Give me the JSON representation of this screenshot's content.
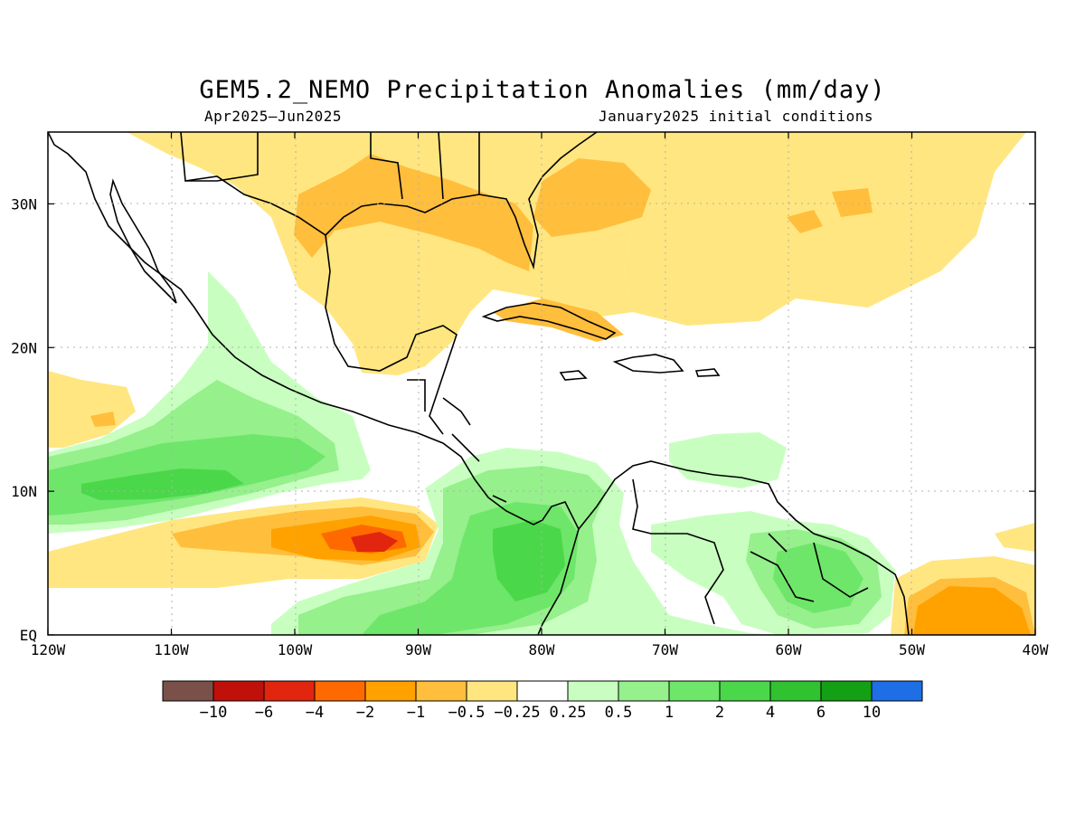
{
  "title": "GEM5.2_NEMO Precipitation Anomalies (mm/day)",
  "subtitle_left": "Apr2025–Jun2025",
  "subtitle_right": "January2025 initial conditions",
  "map": {
    "lon_range": [
      -120,
      -40
    ],
    "lat_range": [
      0,
      35
    ],
    "x_ticks": [
      "120W",
      "110W",
      "100W",
      "90W",
      "80W",
      "70W",
      "60W",
      "50W",
      "40W"
    ],
    "y_ticks": [
      "EQ",
      "10N",
      "20N",
      "30N"
    ],
    "grid": "dotted"
  },
  "colorbar": {
    "colors": [
      "#7a5148",
      "#c0100a",
      "#e2250e",
      "#ff6a00",
      "#ffa200",
      "#ffbe3c",
      "#ffe680",
      "#ffffff",
      "#c8ffc0",
      "#96f08c",
      "#6ee66a",
      "#4ad84a",
      "#30c230",
      "#14a014",
      "#1e6ee6"
    ],
    "labels": [
      "−10",
      "−6",
      "−4",
      "−2",
      "−1",
      "−0.5",
      "−0.25",
      "0.25",
      "0.5",
      "1",
      "2",
      "4",
      "6",
      "10"
    ]
  }
}
